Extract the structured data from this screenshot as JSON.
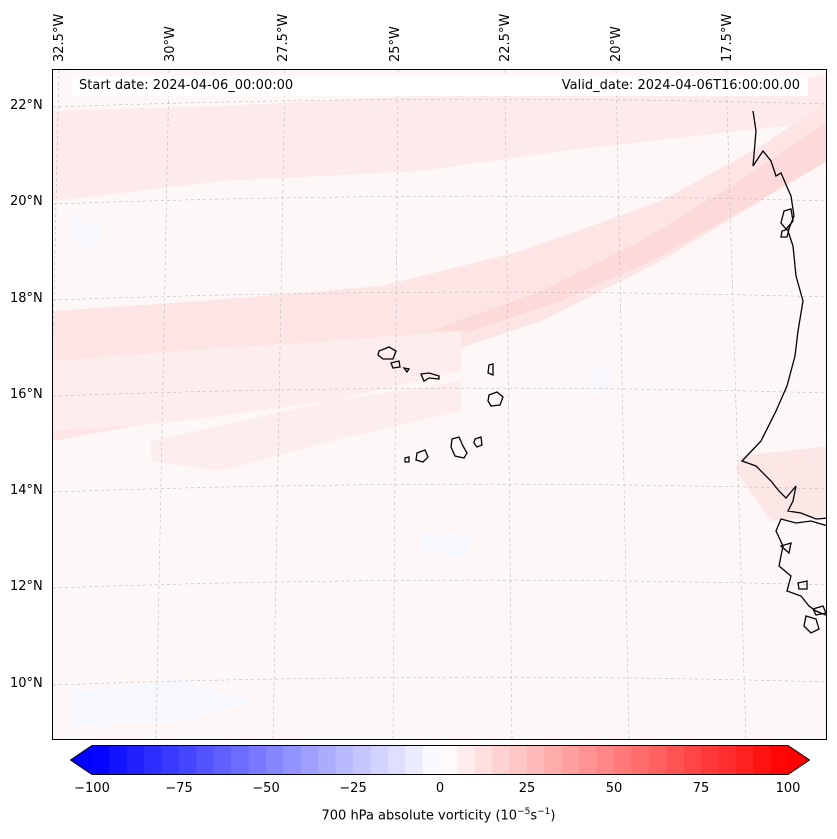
{
  "header": {
    "start_date": "Start date: 2024-04-06_00:00:00",
    "valid_date": "Valid_date: 2024-04-06T16:00:00.00"
  },
  "axes": {
    "lon_labels": [
      "32.5°W",
      "30°W",
      "27.5°W",
      "25°W",
      "22.5°W",
      "20°W",
      "17.5°W"
    ],
    "lat_labels": [
      "22°N",
      "20°N",
      "18°N",
      "16°N",
      "14°N",
      "12°N",
      "10°N"
    ]
  },
  "colorbar": {
    "label_prefix": "700 hPa absolute vorticity (10",
    "label_exp1": "−5",
    "label_mid": "s",
    "label_exp2": "−1",
    "label_suffix": ")",
    "ticks": [
      "−100",
      "−75",
      "−50",
      "−25",
      "0",
      "25",
      "50",
      "75",
      "100"
    ],
    "range": [
      -100,
      100
    ],
    "colors": {
      "min": "#0000ff",
      "mid": "#ffffff",
      "max": "#ff0000"
    }
  },
  "map": {
    "background_color": "#fef7f7",
    "coastline_color": "#000000",
    "gridline_color": "#bbbbbb"
  }
}
